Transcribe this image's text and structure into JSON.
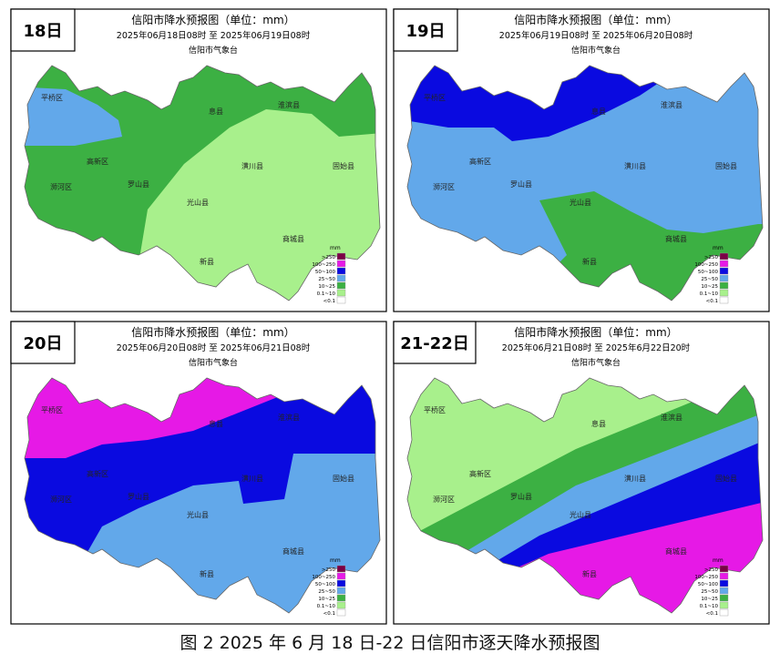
{
  "panels": [
    {
      "day": "18日",
      "title": "信阳市降水预报图（单位：mm）",
      "period": "2025年06月18日08时  至  2025年06月19日08时",
      "issuer": "信阳市气象台"
    },
    {
      "day": "19日",
      "title": "信阳市降水预报图（单位：mm）",
      "period": "2025年06月19日08时  至  2025年06月20日08时",
      "issuer": "信阳市气象台"
    },
    {
      "day": "20日",
      "title": "信阳市降水预报图（单位：mm）",
      "period": "2025年06月20日08时  至  2025年06月21日08时",
      "issuer": "信阳市气象台"
    },
    {
      "day": "21-22日",
      "title": "信阳市降水预报图（单位：mm）",
      "period": "2025年06月21日08时  至  2025年6月22日20时",
      "issuer": "信阳市气象台"
    }
  ],
  "counties": [
    "平桥区",
    "息县",
    "淮滨县",
    "高新区",
    "浉河区",
    "罗山县",
    "潢川县",
    "固始县",
    "光山县",
    "商城县",
    "新县"
  ],
  "legend": {
    "unit": "mm",
    "levels": [
      {
        "label": ">250",
        "color": "#7b0046"
      },
      {
        "label": "100~250",
        "color": "#e619e6"
      },
      {
        "label": "50~100",
        "color": "#0a0ae0"
      },
      {
        "label": "25~50",
        "color": "#62a8ea"
      },
      {
        "label": "10~25",
        "color": "#3cb043"
      },
      {
        "label": "0.1~10",
        "color": "#a8f08c"
      },
      {
        "label": "<0.1",
        "color": "#ffffff"
      }
    ]
  },
  "caption": "图 2   2025 年 6 月 18 日-22 日信阳市逐天降水预报图"
}
